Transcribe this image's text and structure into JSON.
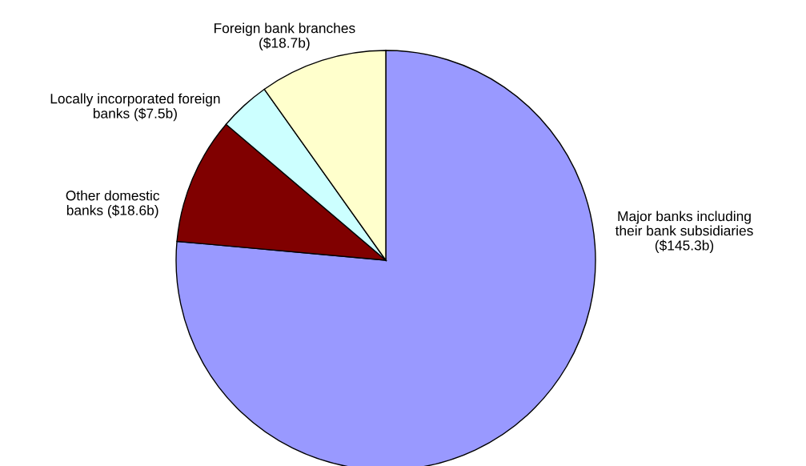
{
  "chart_data": {
    "type": "pie",
    "categories": [
      "Major banks including\ntheir bank subsidiaries",
      "Other domestic\nbanks",
      "Locally incorporated foreign\nbanks",
      "Foreign bank branches"
    ],
    "values": [
      145.3,
      18.6,
      7.5,
      18.7
    ],
    "value_labels": [
      "($145.3b)",
      "($18.6b)",
      "($7.5b)",
      "($18.7b)"
    ],
    "colors": [
      "#9999ff",
      "#800000",
      "#ccffff",
      "#ffffcc"
    ],
    "legend": false
  }
}
